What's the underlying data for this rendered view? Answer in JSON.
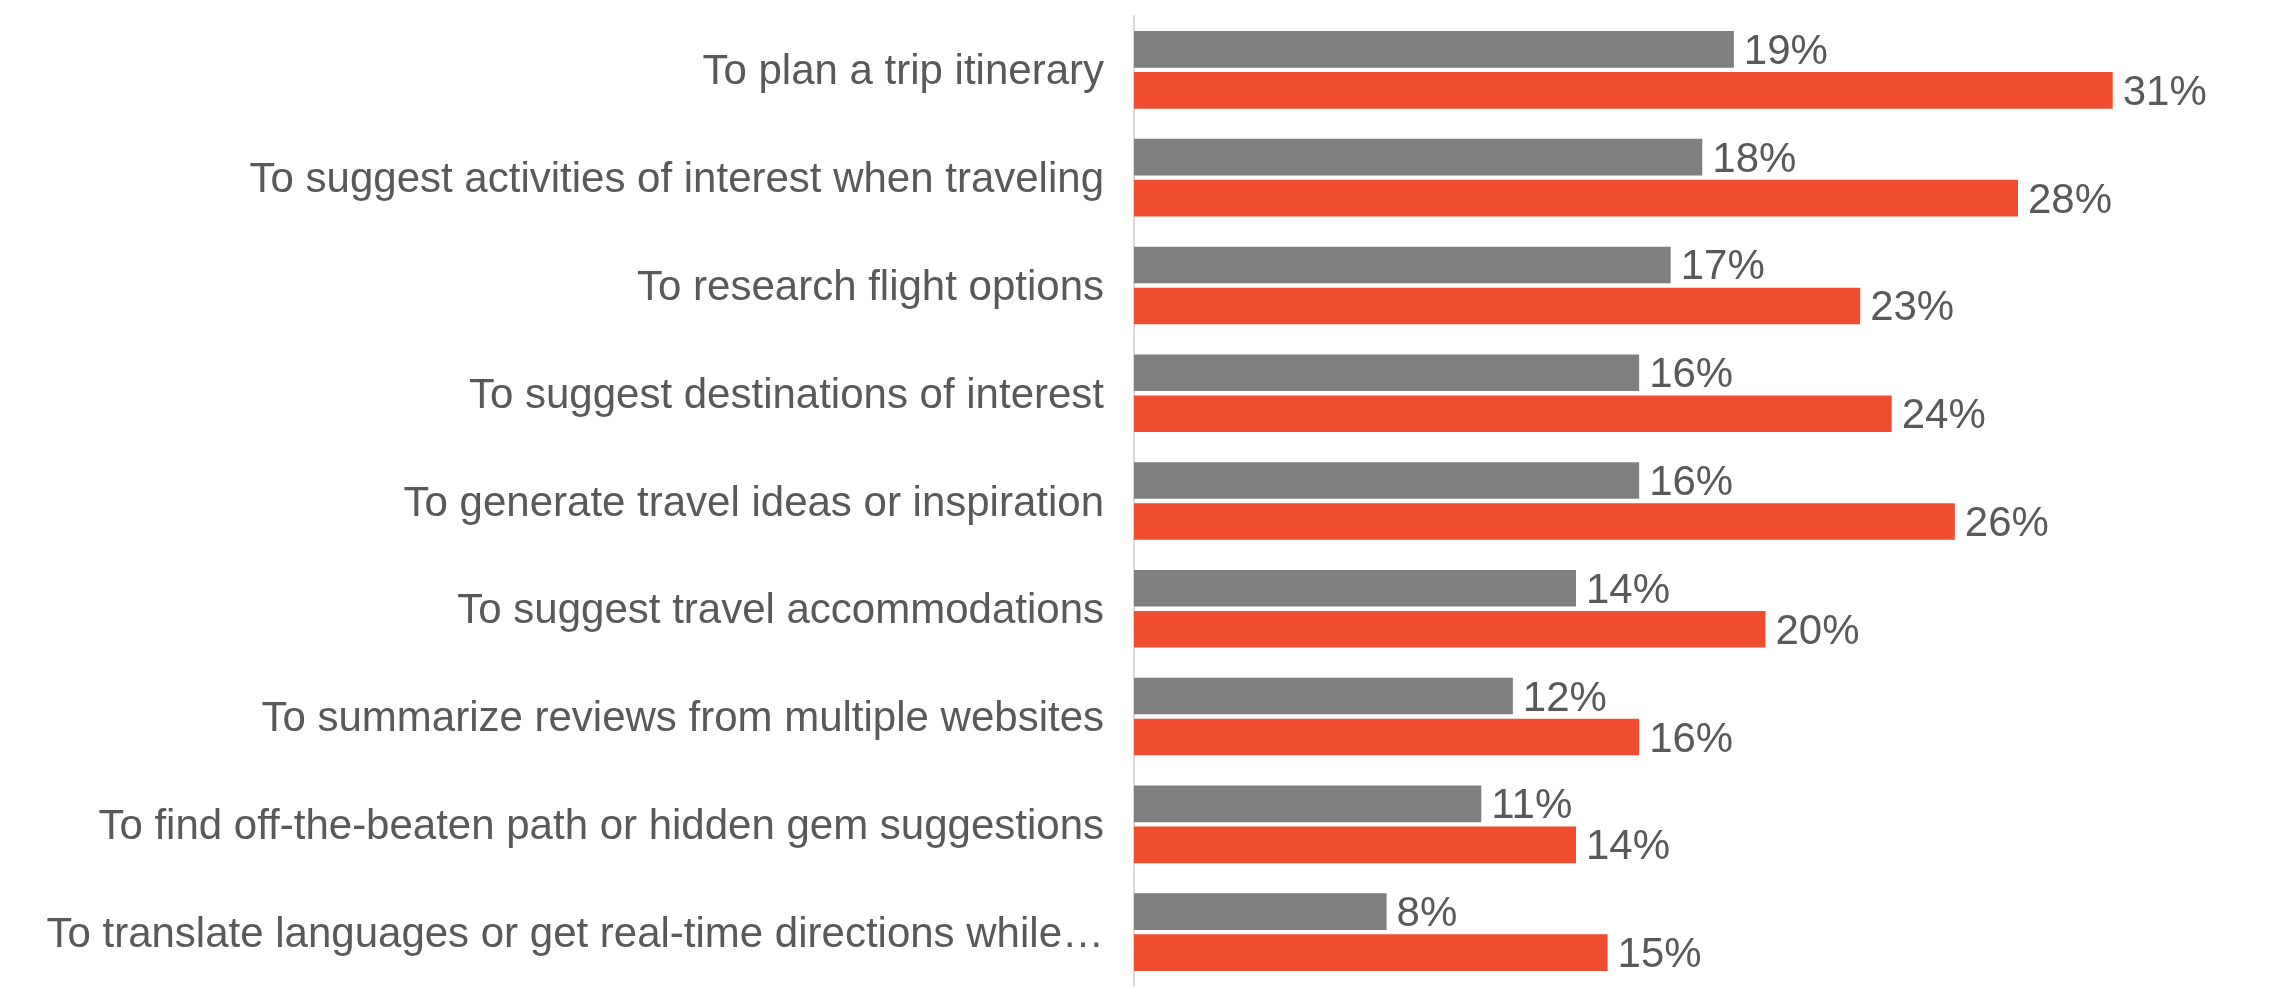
{
  "chart_data": {
    "type": "bar",
    "orientation": "horizontal",
    "categories": [
      "To plan a trip itinerary",
      "To suggest activities of interest when traveling",
      "To research flight options",
      "To suggest destinations of interest",
      "To generate travel ideas or inspiration",
      "To suggest travel accommodations",
      "To summarize reviews from multiple websites",
      "To find off-the-beaten path or hidden gem suggestions",
      "To translate languages or get real-time directions while…"
    ],
    "series": [
      {
        "color": "#7f7f7f",
        "values": [
          19,
          18,
          17,
          16,
          16,
          14,
          12,
          11,
          8
        ],
        "value_labels": [
          "19%",
          "18%",
          "17%",
          "16%",
          "16%",
          "14%",
          "12%",
          "11%",
          "8%"
        ]
      },
      {
        "color": "#f04c2f",
        "values": [
          31,
          28,
          23,
          24,
          26,
          20,
          16,
          14,
          15
        ],
        "value_labels": [
          "31%",
          "28%",
          "23%",
          "24%",
          "26%",
          "20%",
          "16%",
          "14%",
          "15%"
        ]
      }
    ]
  }
}
